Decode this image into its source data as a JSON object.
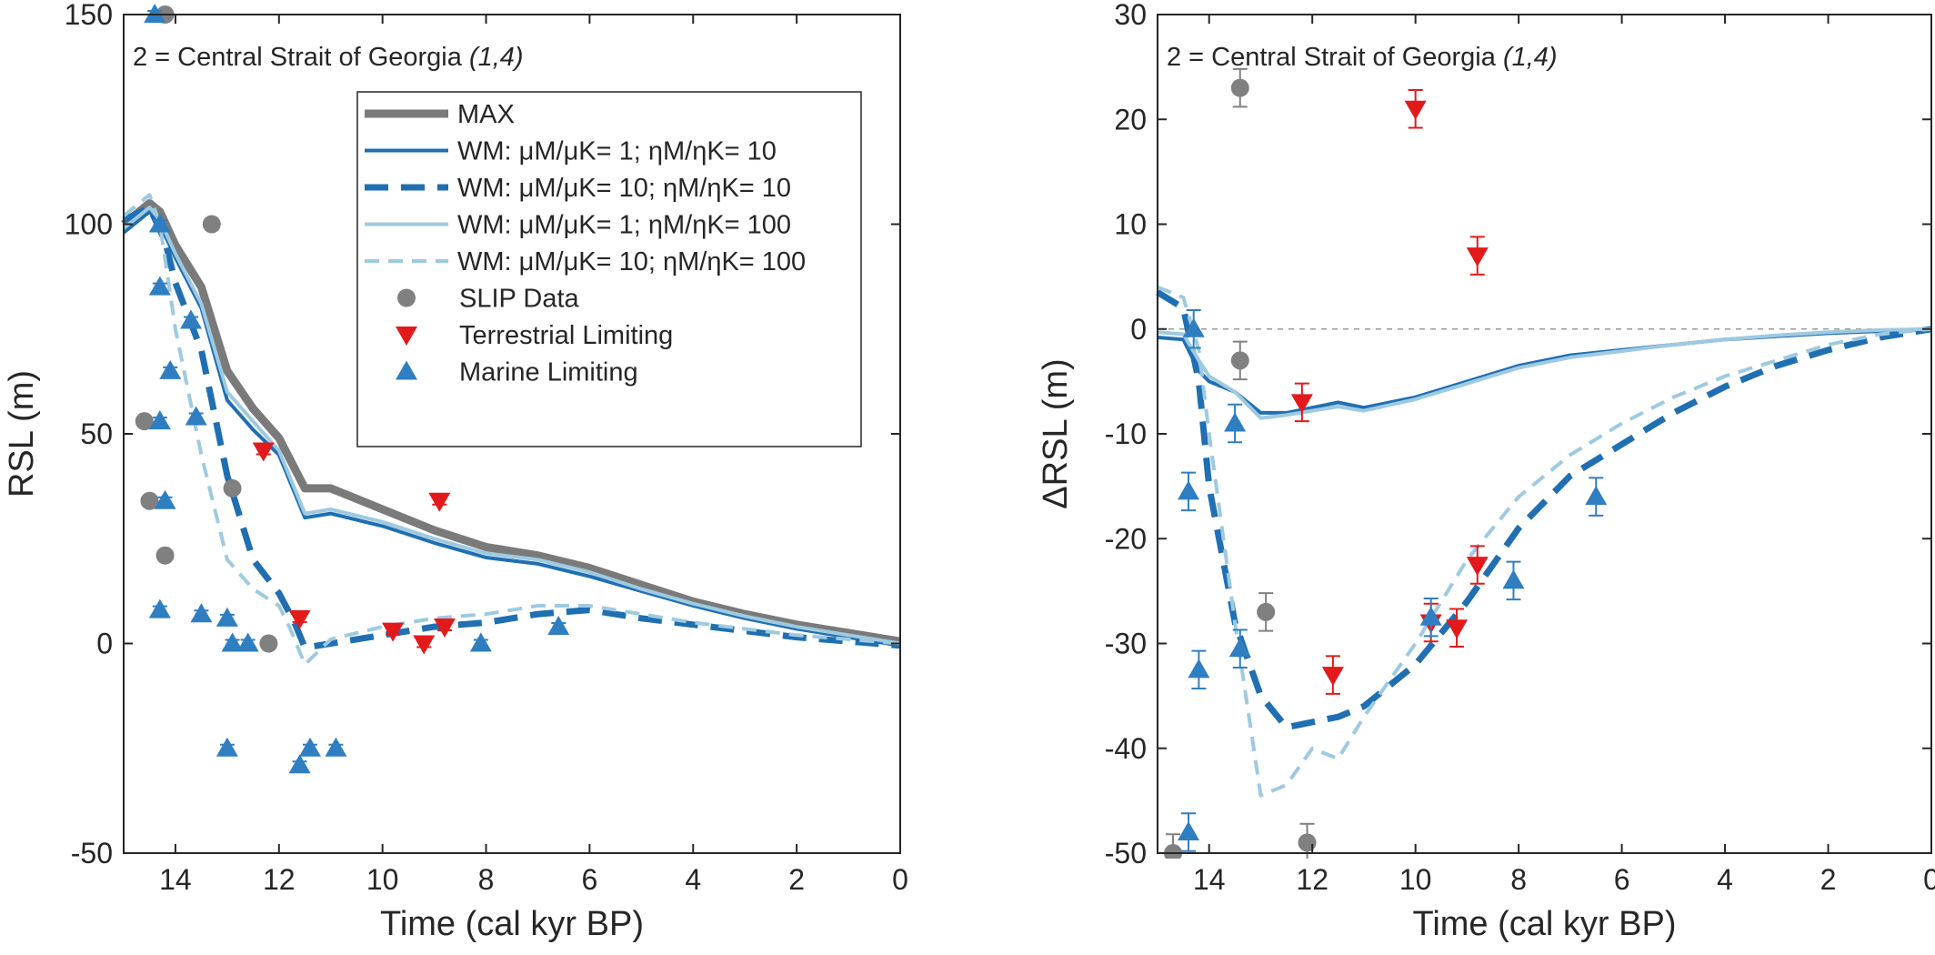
{
  "chart_data": [
    {
      "type": "line",
      "title": "2 = Central Strait of Georgia (1,4)",
      "title_main": "2 = Central Strait of Georgia ",
      "title_note": "(1,4)",
      "xlabel": "Time (cal kyr BP)",
      "ylabel": "RSL (m)",
      "xlim": [
        15,
        0
      ],
      "ylim": [
        -50,
        150
      ],
      "xticks": [
        14,
        12,
        10,
        8,
        6,
        4,
        2,
        0
      ],
      "yticks": [
        -50,
        0,
        50,
        100,
        150
      ],
      "grid": false,
      "legend_position": "top-right",
      "series": [
        {
          "name": "MAX",
          "kind": "line",
          "style": "solid",
          "color": "#7a7a7a",
          "width": 9,
          "x": [
            15,
            14.5,
            14.3,
            14,
            13.5,
            13,
            12.5,
            12,
            11.5,
            11,
            10,
            9,
            8,
            7,
            6,
            5,
            4,
            3,
            2,
            1,
            0
          ],
          "y": [
            100,
            105,
            103,
            95,
            85,
            65,
            56,
            49,
            37,
            37,
            32,
            27,
            23,
            21,
            18,
            14,
            10,
            7,
            4.5,
            2.5,
            0.5
          ]
        },
        {
          "name": "WM: μM/μK= 1; ηM/ηK= 10",
          "kind": "line",
          "style": "solid",
          "color": "#1f6fb2",
          "width": 4,
          "x": [
            15,
            14.5,
            14.3,
            14,
            13.5,
            13,
            12.5,
            12,
            11.5,
            11,
            10,
            9,
            8,
            7,
            6,
            5,
            4,
            3,
            2,
            1,
            0
          ],
          "y": [
            98,
            103,
            100,
            92,
            80,
            58,
            51,
            45,
            30,
            31,
            28,
            24,
            20.5,
            19,
            16,
            12.5,
            9,
            6,
            3.5,
            1.5,
            -0.5
          ]
        },
        {
          "name": "WM: μM/μK= 10; ηM/ηK= 10",
          "kind": "line",
          "style": "dashed",
          "color": "#1f6fb2",
          "width": 7,
          "x": [
            15,
            14.5,
            14.2,
            14,
            13.5,
            13,
            12.5,
            12,
            11.7,
            11.5,
            11,
            10,
            9,
            8,
            7,
            6,
            5,
            4,
            3,
            2,
            1,
            0
          ],
          "y": [
            101,
            104,
            96,
            86,
            70,
            40,
            20,
            12,
            5,
            -1,
            0,
            2,
            4,
            5,
            7,
            8,
            6,
            4.5,
            3,
            1.5,
            0.5,
            -0.5
          ]
        },
        {
          "name": "WM: μM/μK= 1; ηM/ηK= 100",
          "kind": "line",
          "style": "solid",
          "color": "#9ecae1",
          "width": 4,
          "x": [
            15,
            14.5,
            14.3,
            14,
            13.5,
            13,
            12.5,
            12,
            11.5,
            11,
            10,
            9,
            8,
            7,
            6,
            5,
            4,
            3,
            2,
            1,
            0
          ],
          "y": [
            99,
            104,
            101,
            93,
            81,
            60,
            53,
            46,
            31,
            32,
            29,
            25,
            21.5,
            20,
            17,
            13,
            9.5,
            6.5,
            4,
            2,
            0
          ]
        },
        {
          "name": "WM: μM/μK= 10; ηM/ηK= 100",
          "kind": "line",
          "style": "dashed",
          "color": "#9ecae1",
          "width": 4,
          "x": [
            15,
            14.5,
            14.3,
            14,
            13.5,
            13,
            12.5,
            12,
            11.8,
            11.5,
            11,
            10,
            9,
            8,
            7,
            6,
            5,
            4,
            3,
            2,
            1,
            0
          ],
          "y": [
            102,
            107,
            100,
            75,
            45,
            20,
            13,
            9,
            4,
            -5,
            1,
            4,
            6,
            7,
            9,
            9,
            7,
            5,
            3.5,
            2,
            1,
            0
          ]
        },
        {
          "name": "SLIP Data",
          "kind": "marker",
          "marker": "circle",
          "color": "#808080",
          "x": [
            14.2,
            13.3,
            12.9,
            14.6,
            14.5,
            14.2,
            12.2
          ],
          "y": [
            150,
            100,
            37,
            53,
            34,
            21,
            0
          ]
        },
        {
          "name": "Terrestrial Limiting",
          "kind": "marker",
          "marker": "triangle-down",
          "color": "#e31a1c",
          "x": [
            12.3,
            11.6,
            9.8,
            9.2,
            8.8,
            8.9
          ],
          "y": [
            46,
            6,
            3,
            0,
            4,
            34
          ]
        },
        {
          "name": "Marine Limiting",
          "kind": "marker",
          "marker": "triangle-up",
          "color": "#2f7ec1",
          "x": [
            14.4,
            14.3,
            14.3,
            14.1,
            14.3,
            14.2,
            14.3,
            13.7,
            13.6,
            13.5,
            13.0,
            12.9,
            12.6,
            13.0,
            11.6,
            11.4,
            10.9,
            8.1,
            6.6
          ],
          "y": [
            150,
            100,
            85,
            65,
            53,
            34,
            8,
            77,
            54,
            7,
            6,
            0,
            0,
            -25,
            -29,
            -25,
            -25,
            0,
            4
          ]
        }
      ]
    },
    {
      "type": "line",
      "title": "2 = Central Strait of Georgia (1,4)",
      "title_main": "2 = Central Strait of Georgia ",
      "title_note": "(1,4)",
      "xlabel": "Time (cal kyr BP)",
      "ylabel": "ΔRSL (m)",
      "xlim": [
        15,
        0
      ],
      "ylim": [
        -50,
        30
      ],
      "xticks": [
        14,
        12,
        10,
        8,
        6,
        4,
        2,
        0
      ],
      "yticks": [
        -50,
        -40,
        -30,
        -20,
        -10,
        0,
        10,
        20,
        30
      ],
      "grid": false,
      "zero_line": true,
      "series": [
        {
          "name": "WM: μM/μK= 1; ηM/ηK= 10",
          "kind": "line",
          "style": "solid",
          "color": "#1f6fb2",
          "width": 4,
          "x": [
            15,
            14.5,
            14.2,
            14,
            13.5,
            13,
            12.5,
            12,
            11.5,
            11,
            10,
            9,
            8,
            7,
            6,
            5,
            4,
            3,
            2,
            1,
            0
          ],
          "y": [
            -0.8,
            -1,
            -4,
            -5,
            -6,
            -8,
            -8,
            -7.5,
            -7,
            -7.5,
            -6.5,
            -5,
            -3.5,
            -2.5,
            -2,
            -1.5,
            -1,
            -0.7,
            -0.4,
            -0.2,
            0
          ]
        },
        {
          "name": "WM: μM/μK= 10; ηM/ηK= 10",
          "kind": "line",
          "style": "dashed",
          "color": "#1f6fb2",
          "width": 7,
          "x": [
            15,
            14.5,
            14.2,
            14,
            13.5,
            13,
            12.5,
            12,
            11.5,
            11,
            10,
            9,
            8,
            7,
            6,
            5,
            4,
            3,
            2,
            1,
            0
          ],
          "y": [
            3.5,
            2,
            -5,
            -15,
            -28,
            -35,
            -38,
            -37.5,
            -37,
            -36,
            -32,
            -26,
            -19,
            -14,
            -11,
            -8,
            -5.5,
            -3.5,
            -2,
            -0.8,
            0
          ]
        },
        {
          "name": "WM: μM/μK= 1; ηM/ηK= 100",
          "kind": "line",
          "style": "solid",
          "color": "#9ecae1",
          "width": 4,
          "x": [
            15,
            14.5,
            14.2,
            14,
            13.5,
            13,
            12.5,
            12,
            11.5,
            11,
            10,
            9,
            8,
            7,
            6,
            5,
            4,
            3,
            2,
            1,
            0
          ],
          "y": [
            -0.3,
            -0.5,
            -3,
            -4.5,
            -6,
            -8.5,
            -8.2,
            -7.8,
            -7.4,
            -7.8,
            -6.7,
            -5.2,
            -3.7,
            -2.7,
            -2.1,
            -1.5,
            -1,
            -0.6,
            -0.3,
            -0.1,
            0
          ]
        },
        {
          "name": "WM: μM/μK= 10; ηM/ηK= 100",
          "kind": "line",
          "style": "dashed",
          "color": "#9ecae1",
          "width": 4,
          "x": [
            15,
            14.5,
            14.2,
            14,
            13.5,
            13,
            12.5,
            12,
            11.5,
            11,
            10,
            9,
            8,
            7,
            6,
            5,
            4,
            3,
            2,
            1,
            0
          ],
          "y": [
            4,
            3,
            -2,
            -10,
            -28,
            -44.5,
            -43.5,
            -40,
            -41,
            -37,
            -30,
            -22,
            -16,
            -12,
            -9,
            -6.5,
            -4.5,
            -3,
            -1.5,
            -0.5,
            0
          ]
        },
        {
          "name": "SLIP Data",
          "kind": "marker",
          "marker": "circle",
          "color": "#808080",
          "x": [
            13.4,
            13.4,
            12.9,
            14.7,
            12.1
          ],
          "y": [
            23,
            -3,
            -27,
            -50,
            -49
          ]
        },
        {
          "name": "Terrestrial Limiting",
          "kind": "marker",
          "marker": "triangle-down",
          "color": "#e31a1c",
          "x": [
            10.0,
            8.8,
            12.2,
            11.6,
            9.7,
            9.2,
            8.8
          ],
          "y": [
            21,
            7,
            -7,
            -33,
            -28,
            -28.5,
            -22.5
          ]
        },
        {
          "name": "Marine Limiting",
          "kind": "marker",
          "marker": "triangle-up",
          "color": "#2f7ec1",
          "x": [
            14.3,
            13.5,
            14.4,
            14.2,
            13.4,
            9.7,
            8.1,
            6.5,
            14.4
          ],
          "y": [
            0,
            -9,
            -15.5,
            -32.5,
            -30.5,
            -27.5,
            -24,
            -16,
            -48
          ]
        }
      ]
    }
  ]
}
